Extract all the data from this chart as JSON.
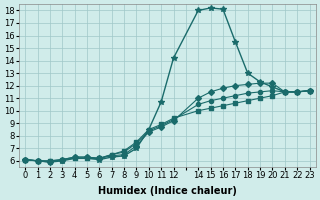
{
  "xlabel": "Humidex (Indice chaleur)",
  "ylabel": "",
  "xlim": [
    -0.5,
    23.5
  ],
  "ylim": [
    5.5,
    18.5
  ],
  "yticks": [
    6,
    7,
    8,
    9,
    10,
    11,
    12,
    13,
    14,
    15,
    16,
    17,
    18
  ],
  "xticks": [
    0,
    1,
    2,
    3,
    4,
    5,
    6,
    7,
    8,
    9,
    10,
    11,
    12,
    13,
    14,
    15,
    16,
    17,
    18,
    19,
    20,
    21,
    22,
    23
  ],
  "xtick_labels": [
    "0",
    "1",
    "2",
    "3",
    "4",
    "5",
    "6",
    "7",
    "8",
    "9",
    "10",
    "11",
    "12",
    "",
    "14",
    "15",
    "16",
    "17",
    "18",
    "19",
    "20",
    "21",
    "22",
    "23"
  ],
  "bg_color": "#d0ecea",
  "grid_color": "#a0c8c8",
  "line_color": "#1a6b6b",
  "lines": [
    {
      "x": [
        0,
        1,
        2,
        3,
        4,
        5,
        6,
        7,
        8,
        9,
        10,
        11,
        12,
        14,
        15,
        16,
        17,
        18,
        19,
        20,
        21,
        22,
        23
      ],
      "y": [
        6.1,
        6.0,
        5.9,
        6.0,
        6.2,
        6.2,
        6.1,
        6.3,
        6.4,
        7.0,
        8.5,
        10.7,
        14.2,
        18.0,
        18.2,
        18.1,
        15.5,
        13.0,
        12.3,
        11.9,
        11.5,
        11.5,
        11.6
      ],
      "marker": "*"
    },
    {
      "x": [
        0,
        1,
        2,
        3,
        4,
        5,
        6,
        7,
        8,
        9,
        10,
        11,
        12,
        14,
        15,
        16,
        17,
        18,
        19,
        20,
        21,
        22,
        23
      ],
      "y": [
        6.1,
        6.0,
        5.9,
        6.1,
        6.3,
        6.3,
        6.2,
        6.4,
        6.5,
        7.2,
        8.3,
        8.7,
        9.2,
        11.0,
        11.5,
        11.8,
        12.0,
        12.1,
        12.2,
        12.2,
        11.5,
        11.5,
        11.6
      ],
      "marker": "D"
    },
    {
      "x": [
        0,
        1,
        2,
        3,
        4,
        5,
        6,
        7,
        8,
        9,
        10,
        11,
        12,
        14,
        15,
        16,
        17,
        18,
        19,
        20,
        21,
        22,
        23
      ],
      "y": [
        6.1,
        6.0,
        6.0,
        6.1,
        6.3,
        6.3,
        6.2,
        6.5,
        6.7,
        7.4,
        8.4,
        8.8,
        9.3,
        10.5,
        10.8,
        11.0,
        11.2,
        11.4,
        11.5,
        11.6,
        11.5,
        11.5,
        11.6
      ],
      "marker": "o"
    },
    {
      "x": [
        0,
        1,
        2,
        3,
        4,
        5,
        6,
        7,
        8,
        9,
        10,
        11,
        12,
        14,
        15,
        16,
        17,
        18,
        19,
        20,
        21,
        22,
        23
      ],
      "y": [
        6.1,
        6.0,
        6.0,
        6.1,
        6.2,
        6.2,
        6.2,
        6.5,
        6.8,
        7.5,
        8.5,
        8.9,
        9.4,
        10.0,
        10.2,
        10.4,
        10.6,
        10.8,
        11.0,
        11.2,
        11.5,
        11.5,
        11.6
      ],
      "marker": "s"
    }
  ]
}
